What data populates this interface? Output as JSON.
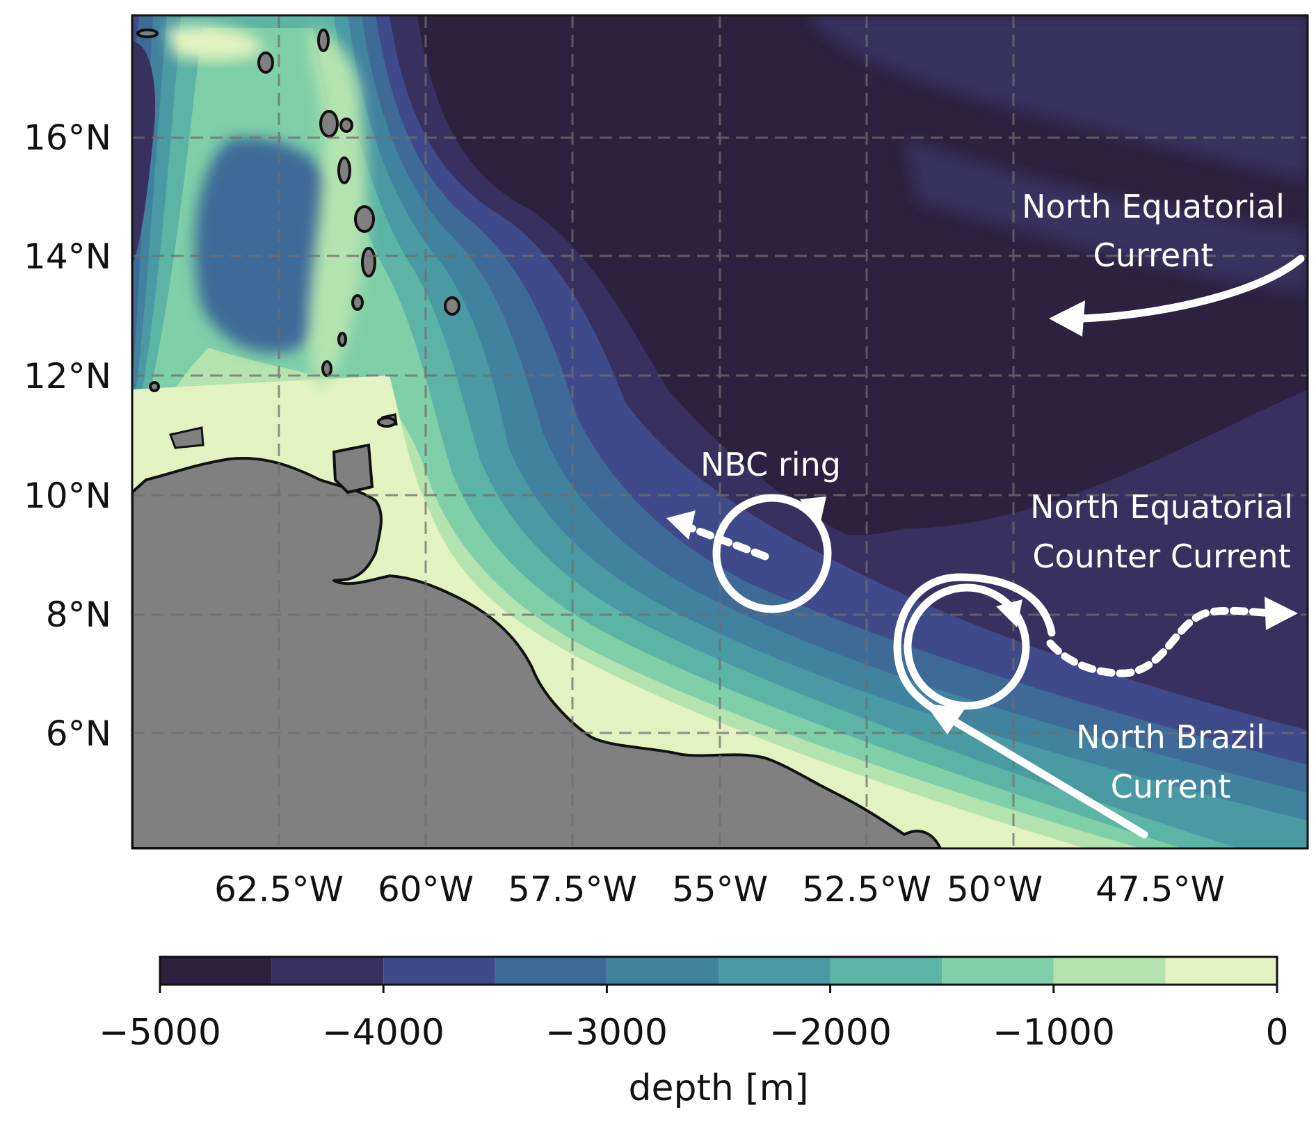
{
  "map": {
    "lat_ticks": [
      "16°N",
      "14°N",
      "12°N",
      "10°N",
      "8°N",
      "6°N"
    ],
    "lon_ticks": [
      "62.5°W",
      "60°W",
      "57.5°W",
      "55°W",
      "52.5°W",
      "50°W",
      "47.5°W"
    ],
    "labels": {
      "nec_line1": "North Equatorial",
      "nec_line2": "Current",
      "nbc_ring": "NBC ring",
      "necc_line1": "North Equatorial",
      "necc_line2": "Counter Current",
      "nbc_line1": "North Brazil",
      "nbc_line2": "Current"
    },
    "colors": {
      "land": "#808080",
      "coast": "#111111",
      "arrows": "#ffffff"
    }
  },
  "colorbar": {
    "label": "depth [m]",
    "ticks": [
      "−5000",
      "−4000",
      "−3000",
      "−2000",
      "−1000",
      "0"
    ],
    "levels": [
      -5000,
      -4500,
      -4000,
      -3500,
      -3000,
      -2500,
      -2000,
      -1500,
      -1000,
      -500,
      0
    ],
    "colors": [
      "#2c2240",
      "#38305f",
      "#3f4a8a",
      "#3e6a98",
      "#41829f",
      "#4a9aa3",
      "#5bb4a4",
      "#7fcfa8",
      "#b4e3af",
      "#e2f2c0"
    ]
  }
}
